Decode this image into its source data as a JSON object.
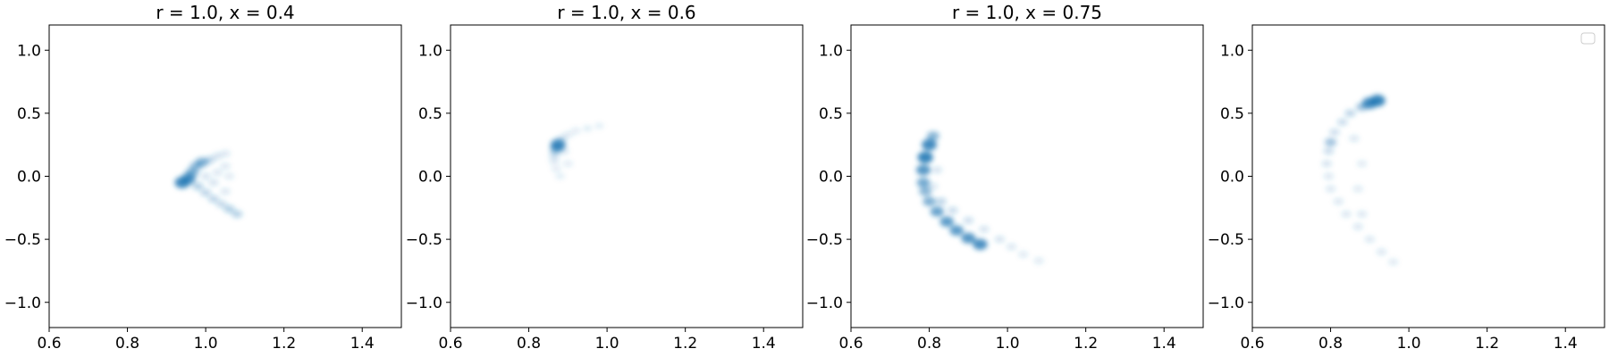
{
  "colors": {
    "density": "#1f77b4",
    "axes": "#000000",
    "background": "#ffffff",
    "legend_border": "#cccccc"
  },
  "chart_data": [
    {
      "type": "heatmap",
      "title": "r = 1.0, x = 0.4",
      "xlabel": "",
      "ylabel": "",
      "xlim": [
        0.6,
        1.5
      ],
      "ylim": [
        -1.2,
        1.2
      ],
      "xticks": [
        "0.6",
        "0.8",
        "1.0",
        "1.2",
        "1.4"
      ],
      "yticks": [
        "1.0",
        "0.5",
        "0.0",
        "−0.5",
        "−1.0"
      ],
      "grid": false,
      "points": [
        {
          "x": 0.94,
          "y": -0.05,
          "v": 0.85
        },
        {
          "x": 0.955,
          "y": -0.02,
          "v": 0.8
        },
        {
          "x": 0.965,
          "y": 0.03,
          "v": 0.55
        },
        {
          "x": 0.975,
          "y": 0.08,
          "v": 0.45
        },
        {
          "x": 0.99,
          "y": 0.11,
          "v": 0.55
        },
        {
          "x": 1.01,
          "y": 0.13,
          "v": 0.25
        },
        {
          "x": 1.03,
          "y": 0.16,
          "v": 0.15
        },
        {
          "x": 1.05,
          "y": 0.18,
          "v": 0.12
        },
        {
          "x": 0.98,
          "y": -0.08,
          "v": 0.3
        },
        {
          "x": 1.0,
          "y": -0.13,
          "v": 0.25
        },
        {
          "x": 1.02,
          "y": -0.18,
          "v": 0.25
        },
        {
          "x": 1.04,
          "y": -0.22,
          "v": 0.22
        },
        {
          "x": 1.06,
          "y": -0.26,
          "v": 0.3
        },
        {
          "x": 1.08,
          "y": -0.3,
          "v": 0.28
        },
        {
          "x": 1.0,
          "y": 0.0,
          "v": 0.15
        },
        {
          "x": 1.03,
          "y": 0.03,
          "v": 0.12
        },
        {
          "x": 1.05,
          "y": 0.08,
          "v": 0.12
        },
        {
          "x": 1.02,
          "y": -0.05,
          "v": 0.15
        },
        {
          "x": 1.05,
          "y": -0.12,
          "v": 0.12
        },
        {
          "x": 1.06,
          "y": 0.0,
          "v": 0.1
        }
      ]
    },
    {
      "type": "heatmap",
      "title": "r = 1.0, x = 0.6",
      "xlabel": "",
      "ylabel": "",
      "xlim": [
        0.6,
        1.5
      ],
      "ylim": [
        -1.2,
        1.2
      ],
      "xticks": [
        "0.6",
        "0.8",
        "1.0",
        "1.2",
        "1.4"
      ],
      "yticks": [
        "1.0",
        "0.5",
        "0.0",
        "−0.5",
        "−1.0"
      ],
      "grid": false,
      "points": [
        {
          "x": 0.875,
          "y": 0.25,
          "v": 0.85
        },
        {
          "x": 0.87,
          "y": 0.22,
          "v": 0.5
        },
        {
          "x": 0.865,
          "y": 0.17,
          "v": 0.2
        },
        {
          "x": 0.865,
          "y": 0.12,
          "v": 0.12
        },
        {
          "x": 0.87,
          "y": 0.06,
          "v": 0.08
        },
        {
          "x": 0.88,
          "y": 0.0,
          "v": 0.06
        },
        {
          "x": 0.885,
          "y": 0.3,
          "v": 0.15
        },
        {
          "x": 0.9,
          "y": 0.33,
          "v": 0.1
        },
        {
          "x": 0.92,
          "y": 0.36,
          "v": 0.08
        },
        {
          "x": 0.95,
          "y": 0.38,
          "v": 0.07
        },
        {
          "x": 0.98,
          "y": 0.4,
          "v": 0.05
        },
        {
          "x": 0.89,
          "y": 0.2,
          "v": 0.12
        },
        {
          "x": 0.9,
          "y": 0.1,
          "v": 0.08
        }
      ]
    },
    {
      "type": "heatmap",
      "title": "r = 1.0, x = 0.75",
      "xlabel": "",
      "ylabel": "",
      "xlim": [
        0.6,
        1.5
      ],
      "ylim": [
        -1.2,
        1.2
      ],
      "xticks": [
        "0.6",
        "0.8",
        "1.0",
        "1.2",
        "1.4"
      ],
      "yticks": [
        "1.0",
        "0.5",
        "0.0",
        "−0.5",
        "−1.0"
      ],
      "grid": false,
      "points": [
        {
          "x": 0.81,
          "y": 0.32,
          "v": 0.5
        },
        {
          "x": 0.8,
          "y": 0.25,
          "v": 0.85
        },
        {
          "x": 0.79,
          "y": 0.15,
          "v": 0.9
        },
        {
          "x": 0.785,
          "y": 0.05,
          "v": 0.75
        },
        {
          "x": 0.785,
          "y": -0.05,
          "v": 0.6
        },
        {
          "x": 0.79,
          "y": -0.12,
          "v": 0.5
        },
        {
          "x": 0.8,
          "y": -0.2,
          "v": 0.55
        },
        {
          "x": 0.82,
          "y": -0.28,
          "v": 0.65
        },
        {
          "x": 0.845,
          "y": -0.36,
          "v": 0.7
        },
        {
          "x": 0.87,
          "y": -0.43,
          "v": 0.7
        },
        {
          "x": 0.9,
          "y": -0.49,
          "v": 0.75
        },
        {
          "x": 0.93,
          "y": -0.54,
          "v": 0.8
        },
        {
          "x": 0.83,
          "y": -0.2,
          "v": 0.25
        },
        {
          "x": 0.86,
          "y": -0.27,
          "v": 0.2
        },
        {
          "x": 0.9,
          "y": -0.35,
          "v": 0.18
        },
        {
          "x": 0.94,
          "y": -0.42,
          "v": 0.15
        },
        {
          "x": 0.98,
          "y": -0.5,
          "v": 0.15
        },
        {
          "x": 1.01,
          "y": -0.56,
          "v": 0.12
        },
        {
          "x": 1.04,
          "y": -0.62,
          "v": 0.1
        },
        {
          "x": 1.08,
          "y": -0.67,
          "v": 0.1
        },
        {
          "x": 0.82,
          "y": 0.05,
          "v": 0.15
        },
        {
          "x": 0.81,
          "y": -0.08,
          "v": 0.12
        }
      ]
    },
    {
      "type": "heatmap",
      "title": "",
      "xlabel": "",
      "ylabel": "",
      "xlim": [
        0.6,
        1.5
      ],
      "ylim": [
        -1.2,
        1.2
      ],
      "xticks": [
        "0.6",
        "0.8",
        "1.0",
        "1.2",
        "1.4"
      ],
      "yticks": [
        "1.0",
        "0.5",
        "0.0",
        "−0.5",
        "−1.0"
      ],
      "grid": false,
      "legend": "top-right",
      "points": [
        {
          "x": 0.92,
          "y": 0.6,
          "v": 0.9
        },
        {
          "x": 0.9,
          "y": 0.58,
          "v": 0.85
        },
        {
          "x": 0.88,
          "y": 0.55,
          "v": 0.4
        },
        {
          "x": 0.85,
          "y": 0.5,
          "v": 0.25
        },
        {
          "x": 0.83,
          "y": 0.43,
          "v": 0.2
        },
        {
          "x": 0.81,
          "y": 0.35,
          "v": 0.18
        },
        {
          "x": 0.8,
          "y": 0.27,
          "v": 0.4
        },
        {
          "x": 0.795,
          "y": 0.2,
          "v": 0.2
        },
        {
          "x": 0.79,
          "y": 0.1,
          "v": 0.15
        },
        {
          "x": 0.795,
          "y": 0.0,
          "v": 0.12
        },
        {
          "x": 0.8,
          "y": -0.1,
          "v": 0.12
        },
        {
          "x": 0.82,
          "y": -0.2,
          "v": 0.12
        },
        {
          "x": 0.84,
          "y": -0.3,
          "v": 0.12
        },
        {
          "x": 0.87,
          "y": -0.4,
          "v": 0.12
        },
        {
          "x": 0.9,
          "y": -0.5,
          "v": 0.12
        },
        {
          "x": 0.93,
          "y": -0.6,
          "v": 0.12
        },
        {
          "x": 0.96,
          "y": -0.68,
          "v": 0.1
        },
        {
          "x": 0.86,
          "y": 0.3,
          "v": 0.12
        },
        {
          "x": 0.88,
          "y": 0.1,
          "v": 0.1
        },
        {
          "x": 0.87,
          "y": -0.1,
          "v": 0.1
        },
        {
          "x": 0.88,
          "y": -0.3,
          "v": 0.12
        }
      ]
    }
  ]
}
